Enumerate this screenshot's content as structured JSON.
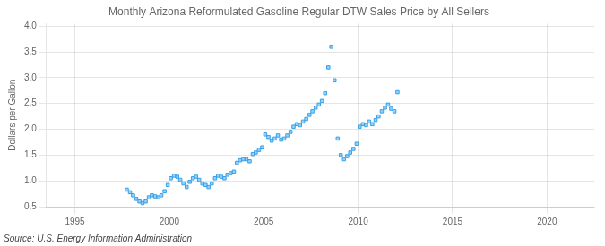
{
  "chart_data": {
    "type": "scatter",
    "title": "Monthly Arizona Reformulated Gasoline Regular DTW Sales Price by All Sellers",
    "ylabel": "Dollars per Gallon",
    "annotations": [
      "Source: U.S. Energy Information Administration"
    ],
    "marker": "square",
    "grid": true,
    "xlim": [
      1993.5,
      2022.5
    ],
    "ylim": [
      0.5,
      4.05
    ],
    "xticks": [
      1995,
      2000,
      2005,
      2010,
      2015,
      2020
    ],
    "yticks": [
      0.5,
      {
        "value": 1.0,
        "label": "1.0"
      },
      1.5,
      {
        "value": 2.0,
        "label": "2.0"
      },
      2.5,
      {
        "value": 3.0,
        "label": "3.0"
      },
      3.5,
      {
        "value": 4.0,
        "label": "4.0"
      }
    ],
    "x": [
      1997.75,
      1997.92,
      1998.08,
      1998.25,
      1998.42,
      1998.58,
      1998.75,
      1998.92,
      1999.08,
      1999.25,
      1999.42,
      1999.58,
      1999.75,
      1999.92,
      2000.08,
      2000.25,
      2000.42,
      2000.58,
      2000.75,
      2000.92,
      2001.08,
      2001.25,
      2001.42,
      2001.58,
      2001.75,
      2001.92,
      2002.08,
      2002.25,
      2002.42,
      2002.58,
      2002.75,
      2002.92,
      2003.08,
      2003.25,
      2003.42,
      2003.58,
      2003.75,
      2003.92,
      2004.08,
      2004.25,
      2004.42,
      2004.58,
      2004.75,
      2004.92,
      2005.08,
      2005.25,
      2005.42,
      2005.58,
      2005.75,
      2005.92,
      2006.08,
      2006.25,
      2006.42,
      2006.58,
      2006.75,
      2006.92,
      2007.08,
      2007.25,
      2007.42,
      2007.58,
      2007.75,
      2007.92,
      2008.08,
      2008.25,
      2008.42,
      2008.58,
      2008.75,
      2008.92,
      2009.08,
      2009.25,
      2009.42,
      2009.58,
      2009.75,
      2009.92,
      2010.08,
      2010.25,
      2010.42,
      2010.58,
      2010.75,
      2010.92,
      2011.08,
      2011.25,
      2011.42,
      2011.58,
      2011.75,
      2011.92,
      2012.08
    ],
    "values": [
      0.83,
      0.78,
      0.72,
      0.65,
      0.6,
      0.57,
      0.6,
      0.68,
      0.72,
      0.7,
      0.68,
      0.72,
      0.8,
      0.92,
      1.05,
      1.1,
      1.08,
      1.02,
      0.95,
      0.88,
      0.98,
      1.05,
      1.08,
      1.02,
      0.95,
      0.92,
      0.88,
      0.95,
      1.05,
      1.1,
      1.08,
      1.05,
      1.12,
      1.15,
      1.18,
      1.35,
      1.4,
      1.42,
      1.42,
      1.38,
      1.52,
      1.55,
      1.6,
      1.65,
      1.9,
      1.85,
      1.78,
      1.82,
      1.88,
      1.8,
      1.82,
      1.88,
      1.95,
      2.05,
      2.1,
      2.08,
      2.15,
      2.2,
      2.28,
      2.35,
      2.42,
      2.48,
      2.55,
      2.7,
      3.2,
      3.6,
      2.95,
      1.82,
      1.5,
      1.42,
      1.48,
      1.55,
      1.62,
      1.72,
      2.05,
      2.1,
      2.08,
      2.15,
      2.1,
      2.18,
      2.25,
      2.35,
      2.42,
      2.48,
      2.4,
      2.35,
      2.72
    ]
  }
}
